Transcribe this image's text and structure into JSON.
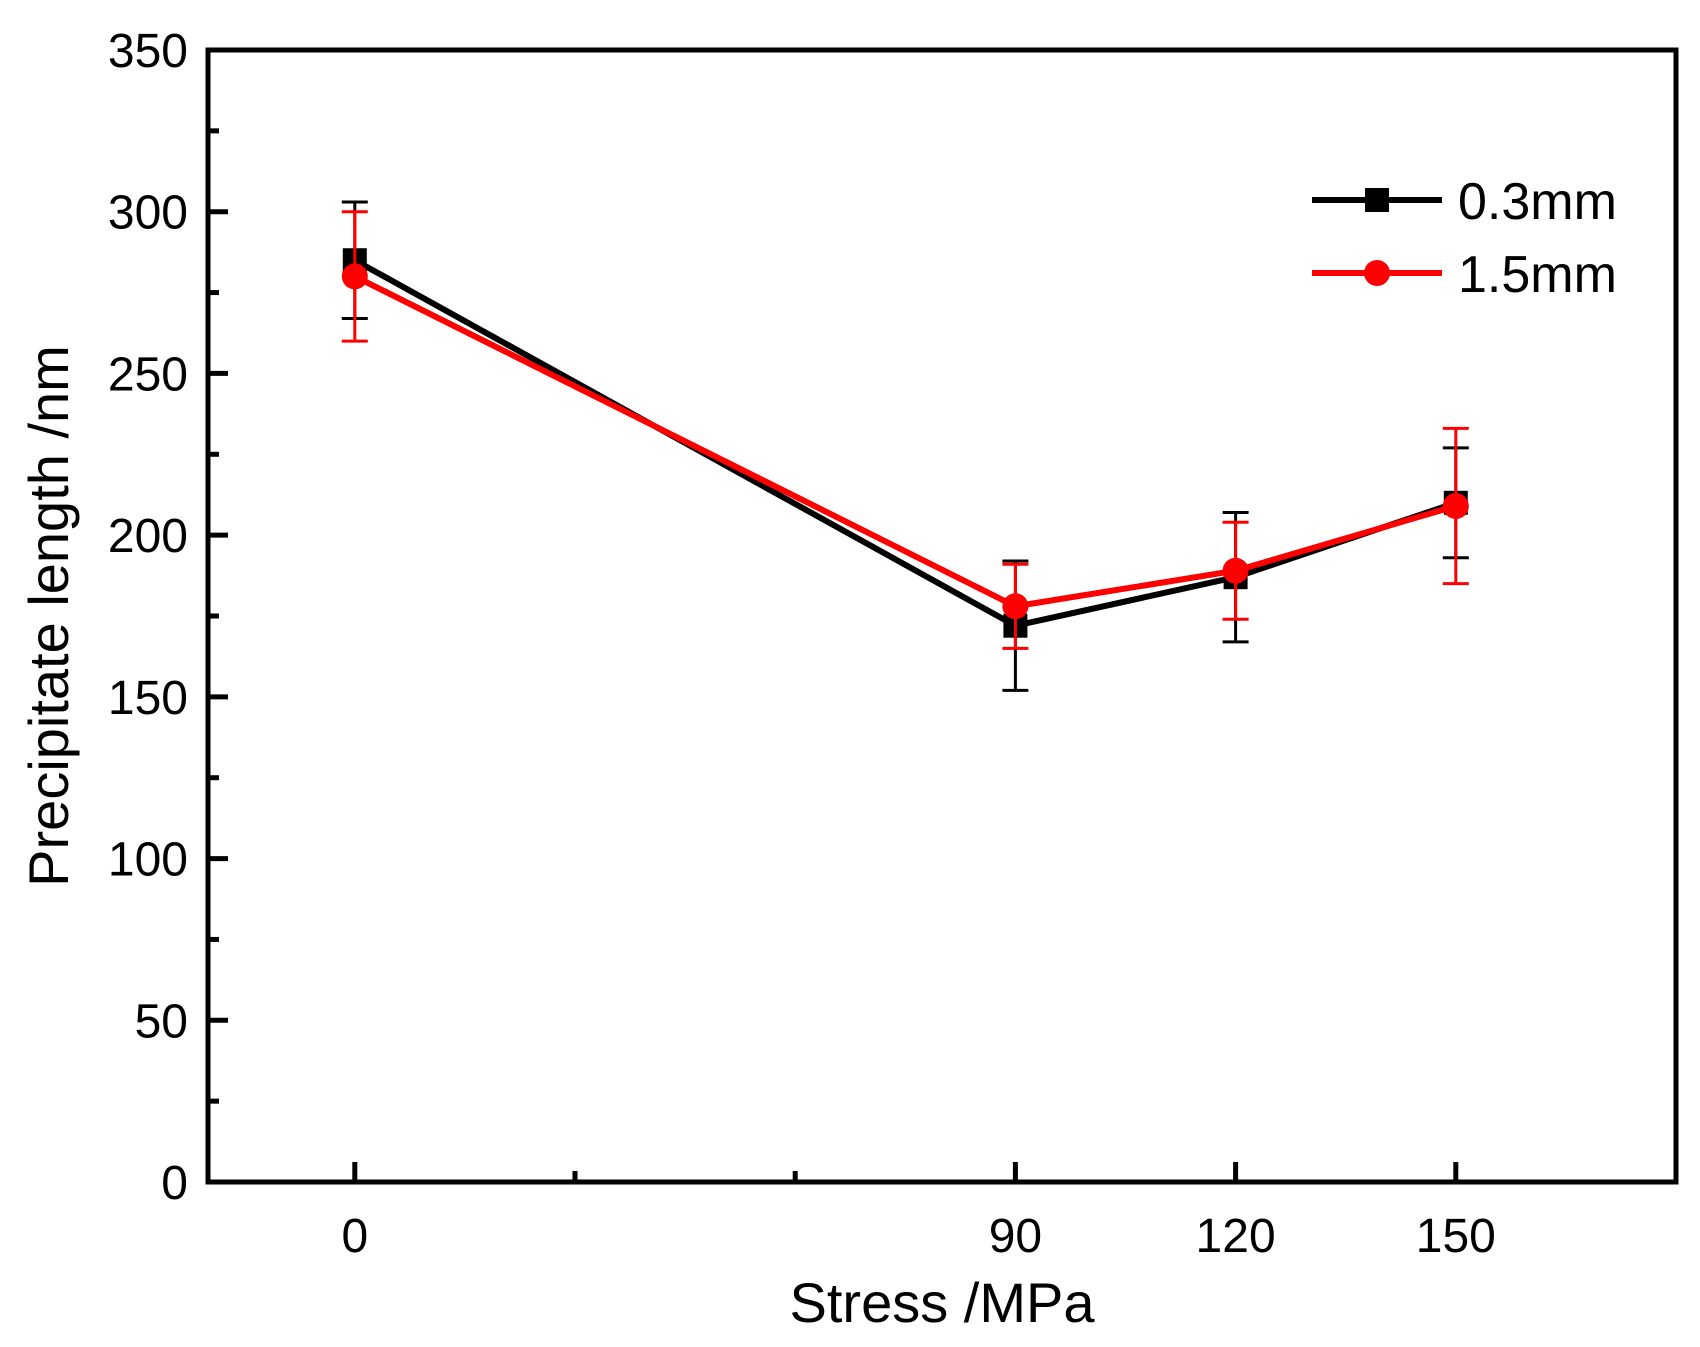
{
  "chart_data": {
    "type": "line",
    "title": "",
    "xlabel": "Stress /MPa",
    "ylabel": "Precipitate length /nm",
    "x_tick_labels": [
      "0",
      "90",
      "120",
      "150"
    ],
    "x_minor_ticks": [
      30,
      60
    ],
    "y_tick_labels": [
      "0",
      "50",
      "100",
      "150",
      "200",
      "250",
      "300",
      "350"
    ],
    "xlim": [
      -20,
      180
    ],
    "ylim": [
      0,
      350
    ],
    "grid": false,
    "legend_position": "top-right",
    "series": [
      {
        "name": "0.3mm",
        "color": "#000000",
        "marker": "square",
        "x": [
          0,
          90,
          120,
          150
        ],
        "y": [
          285,
          172,
          187,
          210
        ],
        "err_low": [
          267,
          152,
          167,
          193
        ],
        "err_high": [
          303,
          192,
          207,
          227
        ]
      },
      {
        "name": "1.5mm",
        "color": "#ff0000",
        "marker": "circle",
        "x": [
          0,
          90,
          120,
          150
        ],
        "y": [
          280,
          178,
          189,
          209
        ],
        "err_low": [
          260,
          165,
          174,
          185
        ],
        "err_high": [
          300,
          191,
          204,
          233
        ]
      }
    ]
  }
}
